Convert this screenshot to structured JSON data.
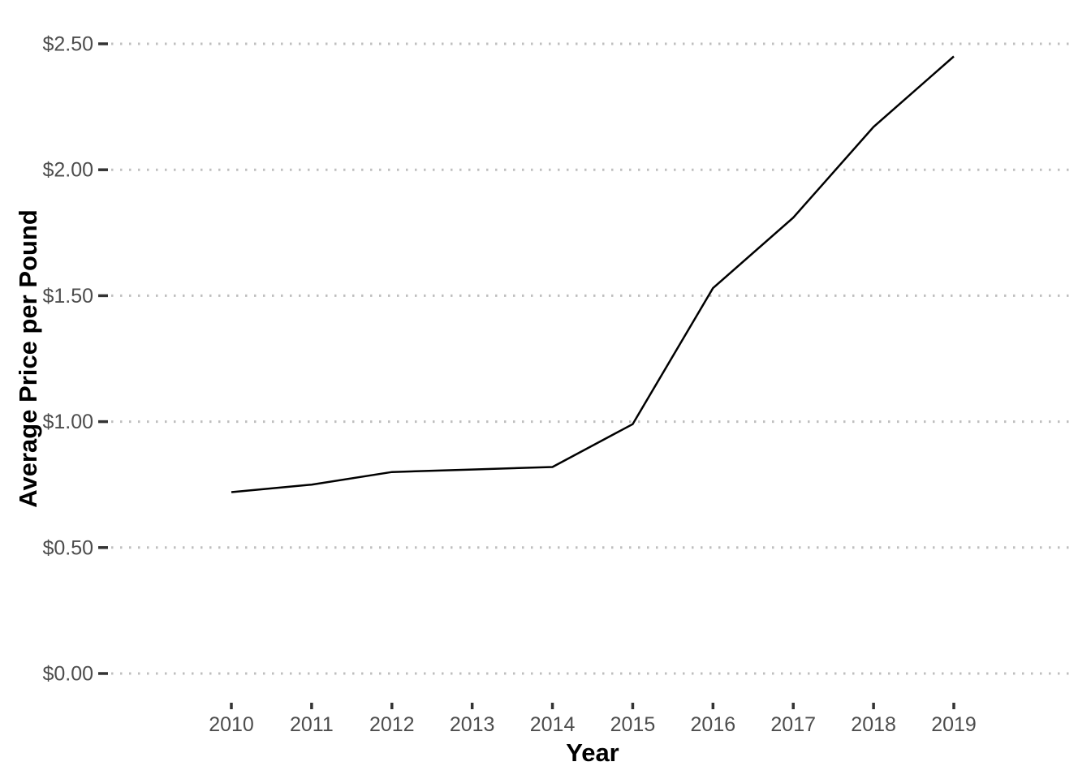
{
  "chart_data": {
    "type": "line",
    "title": "",
    "xlabel": "Year",
    "ylabel": "Average Price per Pound",
    "x": [
      2010,
      2011,
      2012,
      2013,
      2014,
      2015,
      2016,
      2017,
      2018,
      2019
    ],
    "series": [
      {
        "name": "Average Price per Pound",
        "values": [
          0.72,
          0.75,
          0.8,
          0.81,
          0.82,
          0.99,
          1.53,
          1.81,
          2.17,
          2.45
        ]
      }
    ],
    "xlim": [
      2010,
      2019
    ],
    "ylim": [
      0,
      2.5
    ],
    "xtick_labels": [
      "2010",
      "2011",
      "2012",
      "2013",
      "2014",
      "2015",
      "2016",
      "2017",
      "2018",
      "2019"
    ],
    "ytick_values": [
      0,
      0.5,
      1.0,
      1.5,
      2.0,
      2.5
    ],
    "ytick_labels": [
      "$0.00",
      "$0.50",
      "$1.00",
      "$1.50",
      "$2.00",
      "$2.50"
    ],
    "grid": "horizontal-dotted-major-only",
    "legend": "none",
    "colors": {
      "line": "#000000",
      "grid": "#BFBFBF",
      "tick_mark": "#333333",
      "tick_label": "#4D4D4D",
      "axis_title": "#000000",
      "background": "#FFFFFF"
    }
  }
}
